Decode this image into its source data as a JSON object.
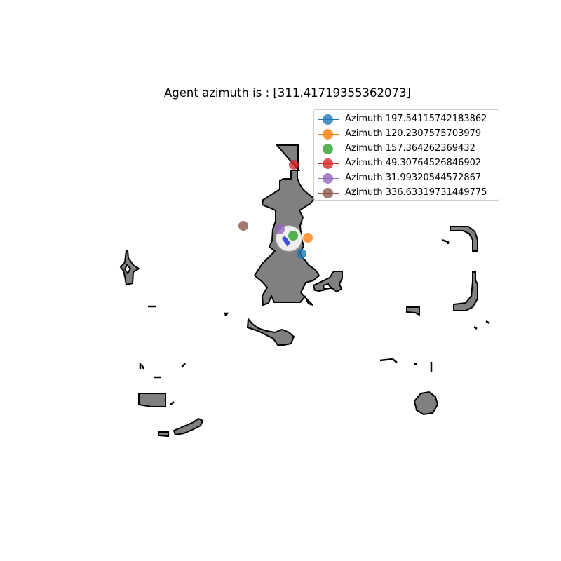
{
  "title": "Agent azimuth is : [311.41719355362073]",
  "legend": [
    {
      "label": "Azimuth 197.54115742183862",
      "color": "#1f77b4"
    },
    {
      "label": "Azimuth 120.2307575703979",
      "color": "#ff7f0e"
    },
    {
      "label": "Azimuth 157.364262369432",
      "color": "#2ca02c"
    },
    {
      "label": "Azimuth 49.30764526846902",
      "color": "#d62728"
    },
    {
      "label": "Azimuth 31.99320544572867",
      "color": "#9467bd"
    },
    {
      "label": "Azimuth 336.63319731449775",
      "color": "#8c564b"
    }
  ],
  "colors": {
    "obstacle_fill": "#808080",
    "obstacle_edge": "#000000",
    "agent_heading": "#3f51d8",
    "background": "#ffffff"
  }
}
